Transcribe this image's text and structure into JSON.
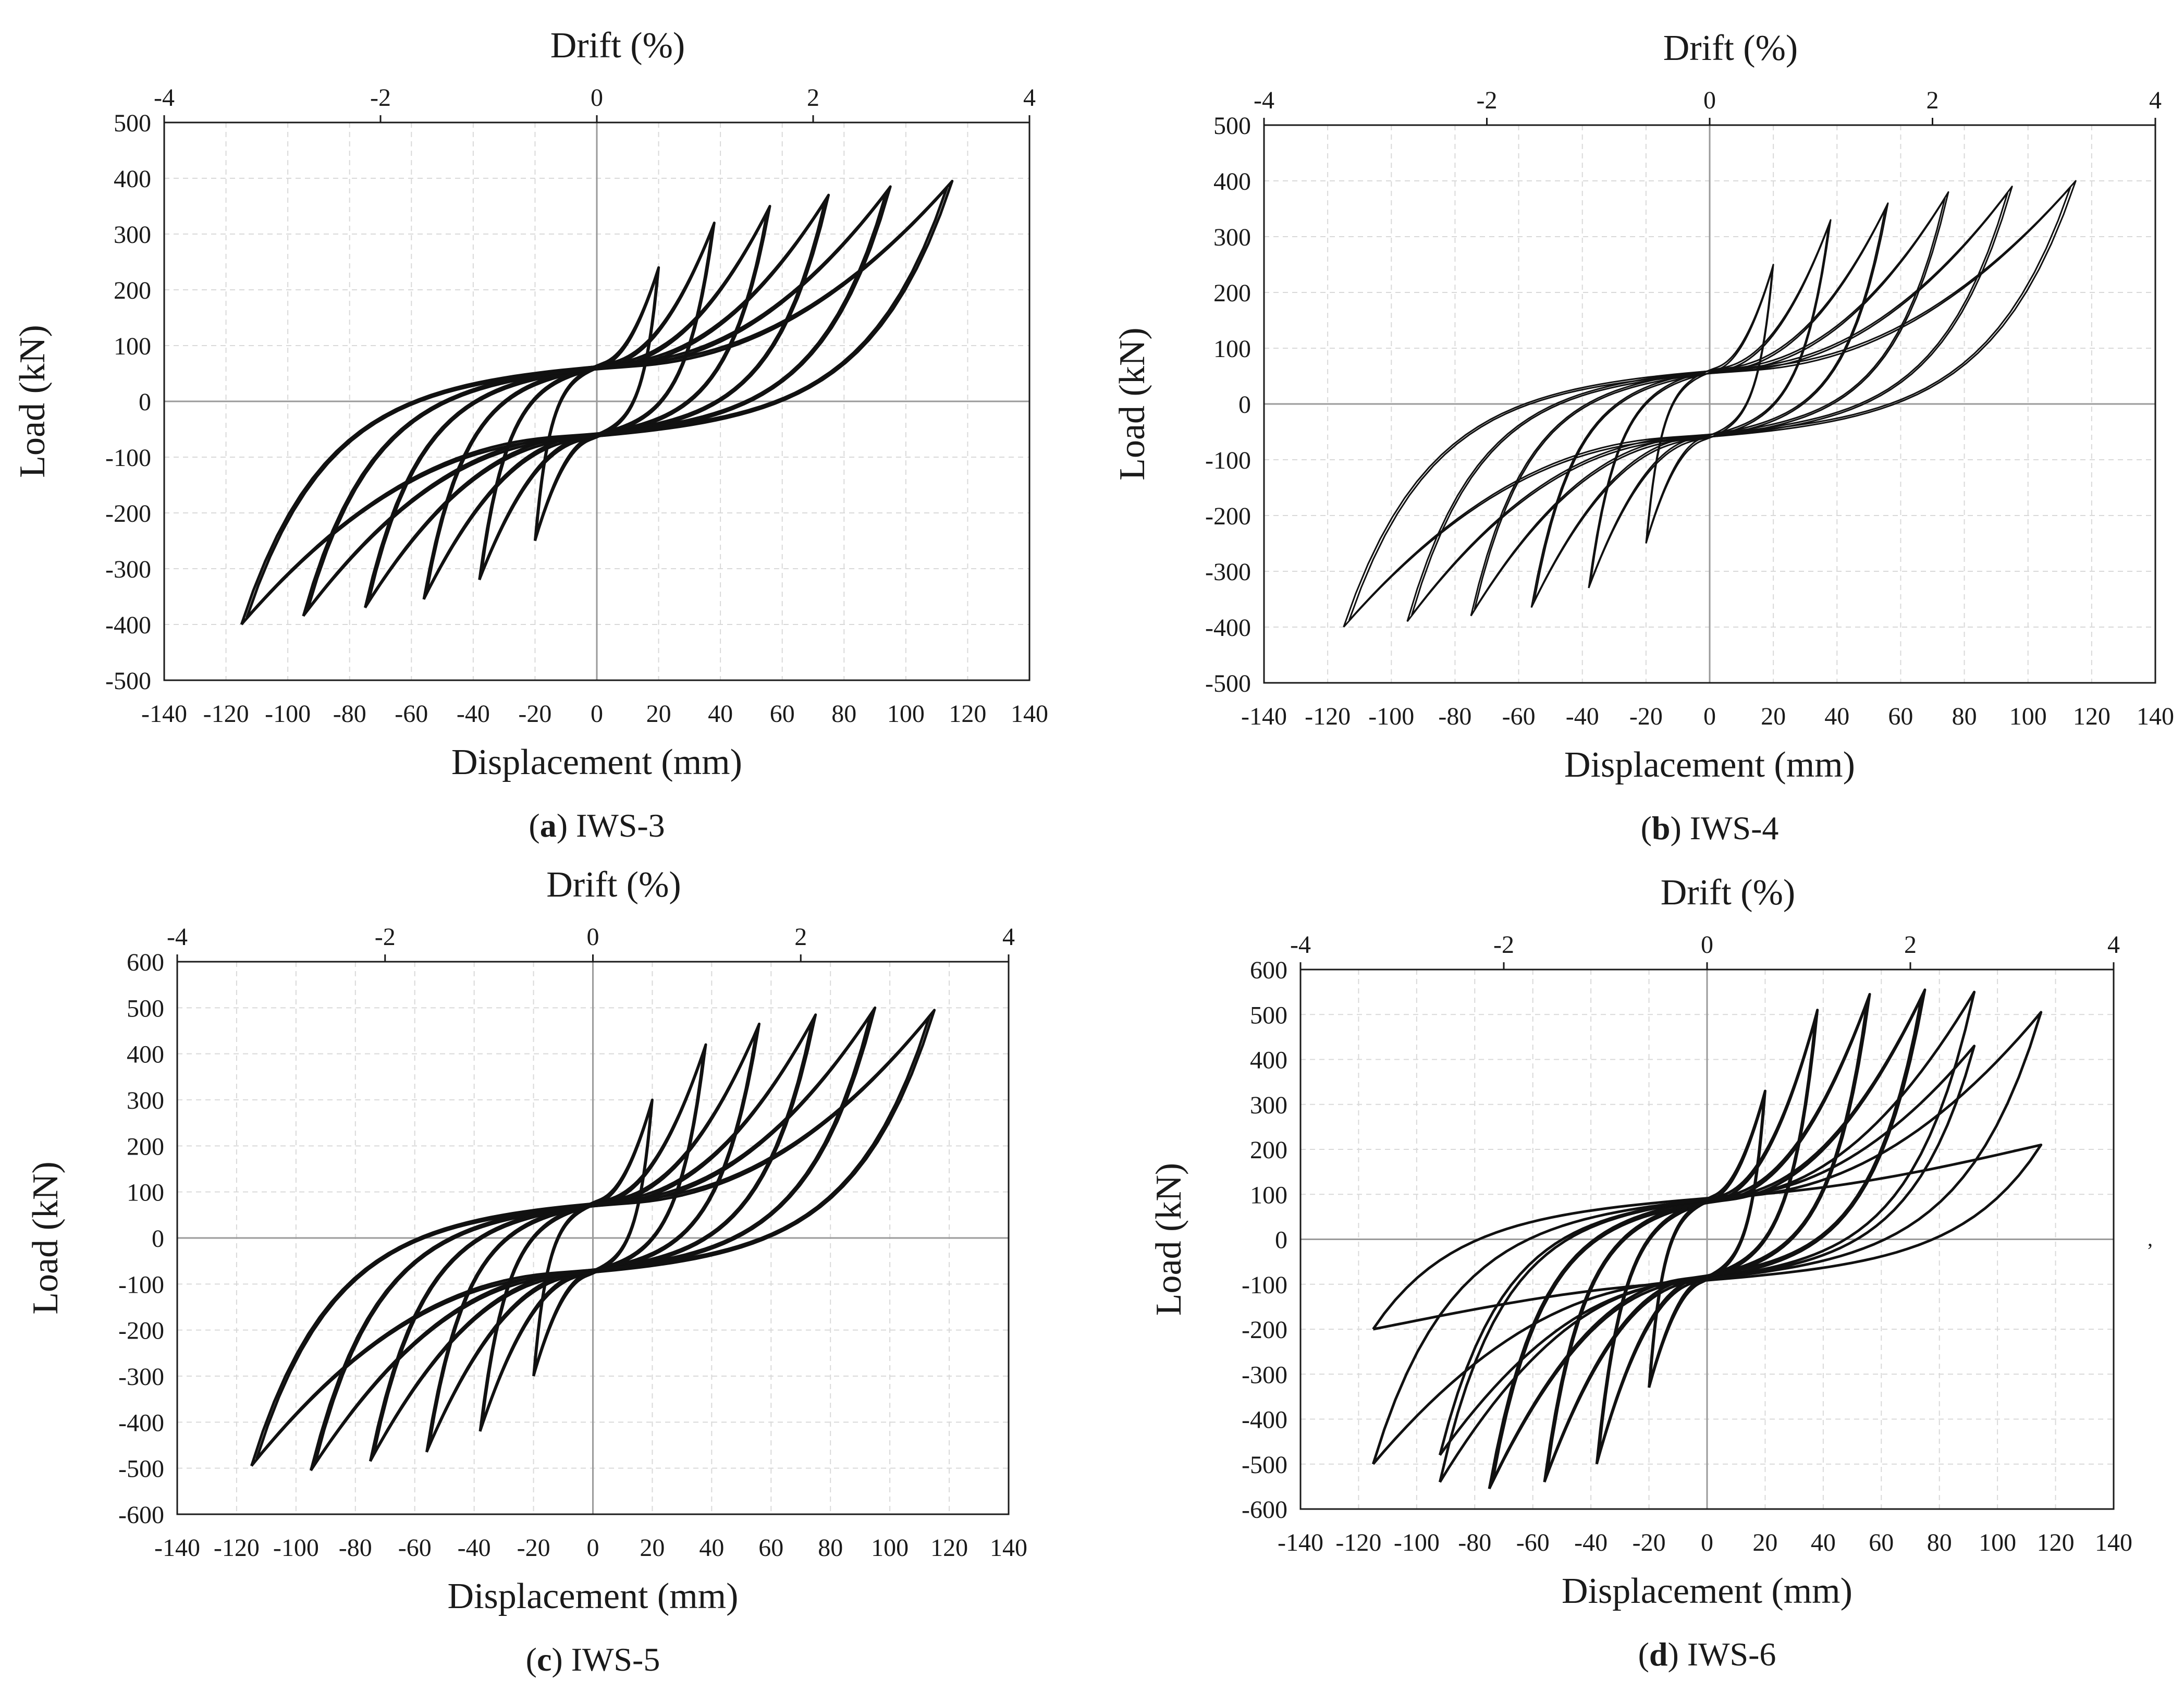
{
  "figure": {
    "panels_order": [
      "a",
      "b",
      "c",
      "d"
    ]
  },
  "chart_data": [
    {
      "id": "a",
      "type": "line",
      "caption_letter": "a",
      "caption_label": "IWS-3",
      "top_axis_title": "Drift (%)",
      "xlabel": "Displacement (mm)",
      "ylabel": "Load (kN)",
      "xlim": [
        -140,
        140
      ],
      "ylim": [
        -500,
        500
      ],
      "xticks": [
        "-140",
        "-120",
        "-100",
        "-80",
        "-60",
        "-40",
        "-20",
        "0",
        "20",
        "40",
        "60",
        "80",
        "100",
        "120",
        "140"
      ],
      "yticks": [
        "-500",
        "-400",
        "-300",
        "-200",
        "-100",
        "0",
        "100",
        "200",
        "300",
        "400",
        "500"
      ],
      "top_ticks": [
        "-4",
        "-2",
        "0",
        "2",
        "4"
      ],
      "top_lim": [
        -4,
        4
      ],
      "grid": true,
      "series_description": "hysteresis loops",
      "cycles": [
        {
          "d": 20,
          "pp": 240,
          "pn": -250,
          "reps": 2
        },
        {
          "d": 38,
          "pp": 320,
          "pn": -320,
          "reps": 2
        },
        {
          "d": 56,
          "pp": 350,
          "pn": -355,
          "reps": 2
        },
        {
          "d": 75,
          "pp": 370,
          "pn": -370,
          "reps": 2
        },
        {
          "d": 95,
          "pp": 385,
          "pn": -385,
          "reps": 2
        },
        {
          "d": 115,
          "pp": 395,
          "pn": -400,
          "reps": 2
        }
      ],
      "intercept": 100,
      "stroke_width": 5
    },
    {
      "id": "b",
      "type": "line",
      "caption_letter": "b",
      "caption_label": "IWS-4",
      "top_axis_title": "Drift (%)",
      "xlabel": "Displacement (mm)",
      "ylabel": "Load (kN)",
      "xlim": [
        -140,
        140
      ],
      "ylim": [
        -500,
        500
      ],
      "xticks": [
        "-140",
        "-120",
        "-100",
        "-80",
        "-60",
        "-40",
        "-20",
        "0",
        "20",
        "40",
        "60",
        "80",
        "100",
        "120",
        "140"
      ],
      "yticks": [
        "-500",
        "-400",
        "-300",
        "-200",
        "-100",
        "0",
        "100",
        "200",
        "300",
        "400",
        "500"
      ],
      "top_ticks": [
        "-4",
        "-2",
        "0",
        "2",
        "4"
      ],
      "top_lim": [
        -4,
        4
      ],
      "grid": true,
      "series_description": "hysteresis loops",
      "cycles": [
        {
          "d": 20,
          "pp": 250,
          "pn": -250,
          "reps": 2
        },
        {
          "d": 38,
          "pp": 330,
          "pn": -330,
          "reps": 2
        },
        {
          "d": 56,
          "pp": 360,
          "pn": -365,
          "reps": 2
        },
        {
          "d": 75,
          "pp": 380,
          "pn": -380,
          "reps": 2
        },
        {
          "d": 95,
          "pp": 390,
          "pn": -390,
          "reps": 2
        },
        {
          "d": 115,
          "pp": 400,
          "pn": -400,
          "reps": 2
        }
      ],
      "intercept": 95,
      "stroke_width": 3
    },
    {
      "id": "c",
      "type": "line",
      "caption_letter": "c",
      "caption_label": "IWS-5",
      "top_axis_title": "Drift (%)",
      "xlabel": "Displacement (mm)",
      "ylabel": "Load (kN)",
      "xlim": [
        -140,
        140
      ],
      "ylim": [
        -600,
        600
      ],
      "xticks": [
        "-140",
        "-120",
        "-100",
        "-80",
        "-60",
        "-40",
        "-20",
        "0",
        "20",
        "40",
        "60",
        "80",
        "100",
        "120",
        "140"
      ],
      "yticks": [
        "-600",
        "-500",
        "-400",
        "-300",
        "-200",
        "-100",
        "0",
        "100",
        "200",
        "300",
        "400",
        "500",
        "600"
      ],
      "top_ticks": [
        "-4",
        "-2",
        "0",
        "2",
        "4"
      ],
      "top_lim": [
        -4,
        4
      ],
      "grid": true,
      "series_description": "hysteresis loops",
      "cycles": [
        {
          "d": 20,
          "pp": 300,
          "pn": -300,
          "reps": 2
        },
        {
          "d": 38,
          "pp": 420,
          "pn": -420,
          "reps": 2
        },
        {
          "d": 56,
          "pp": 465,
          "pn": -465,
          "reps": 2
        },
        {
          "d": 75,
          "pp": 485,
          "pn": -485,
          "reps": 2
        },
        {
          "d": 95,
          "pp": 500,
          "pn": -505,
          "reps": 2
        },
        {
          "d": 115,
          "pp": 495,
          "pn": -495,
          "reps": 2
        }
      ],
      "intercept": 120,
      "stroke_width": 5
    },
    {
      "id": "d",
      "type": "line",
      "caption_letter": "d",
      "caption_label": "IWS-6",
      "top_axis_title": "Drift (%)",
      "xlabel": "Displacement (mm)",
      "ylabel": "Load (kN)",
      "xlim": [
        -140,
        140
      ],
      "ylim": [
        -600,
        600
      ],
      "xticks": [
        "-140",
        "-120",
        "-100",
        "-80",
        "-60",
        "-40",
        "-20",
        "0",
        "20",
        "40",
        "60",
        "80",
        "100",
        "120",
        "140"
      ],
      "yticks": [
        "-600",
        "-500",
        "-400",
        "-300",
        "-200",
        "-100",
        "0",
        "100",
        "200",
        "300",
        "400",
        "500",
        "600"
      ],
      "top_ticks": [
        "-4",
        "-2",
        "0",
        "2",
        "4"
      ],
      "top_lim": [
        -4,
        4
      ],
      "grid": true,
      "series_description": "hysteresis loops with strength degradation",
      "cycles": [
        {
          "d": 20,
          "pp": 330,
          "pn": -330,
          "reps": 2
        },
        {
          "d": 38,
          "pp": 510,
          "pn": -500,
          "reps": 2
        },
        {
          "d": 56,
          "pp": 545,
          "pn": -540,
          "reps": 2
        },
        {
          "d": 75,
          "pp": 555,
          "pn": -555,
          "reps": 2
        },
        {
          "d": 92,
          "pp": 550,
          "pn": -540,
          "reps": 1
        },
        {
          "d": 92,
          "pp": 430,
          "pn": -480,
          "reps": 1
        },
        {
          "d": 115,
          "pp": 505,
          "pn": -500,
          "reps": 1
        },
        {
          "d": 115,
          "pp": 210,
          "pn": -200,
          "reps": 1
        }
      ],
      "intercept": 140,
      "stroke_width": 5
    }
  ]
}
